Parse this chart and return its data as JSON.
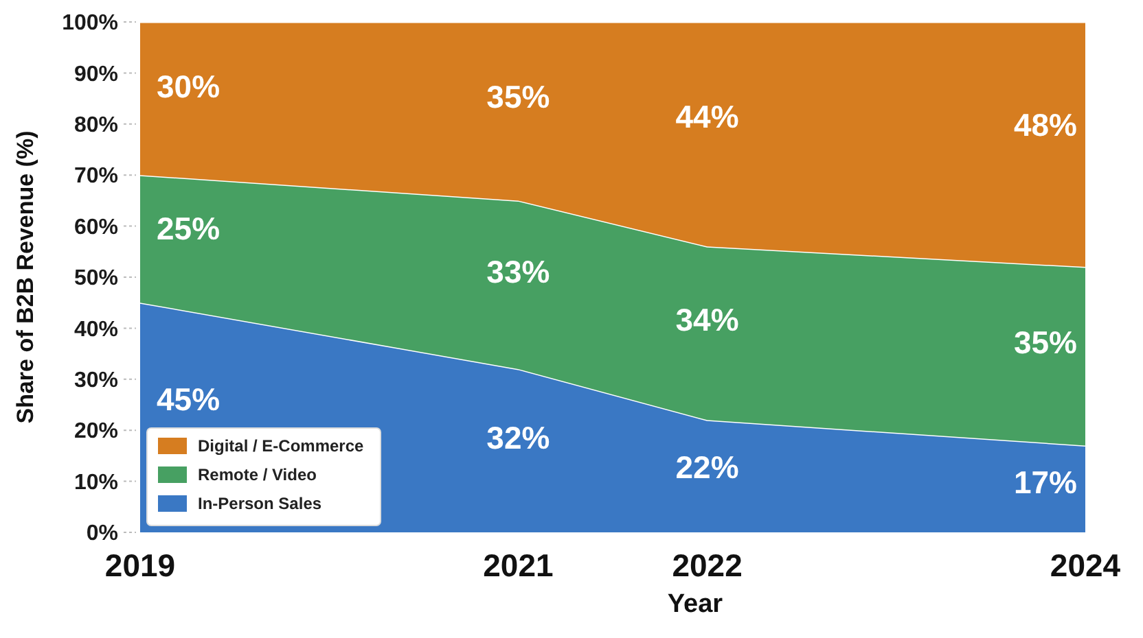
{
  "chart_data": {
    "type": "area",
    "stacked": true,
    "xlabel": "Year",
    "ylabel": "Share of B2B Revenue (%)",
    "x": [
      2019,
      2021,
      2022,
      2024
    ],
    "xlim": [
      2019,
      2024
    ],
    "xticks": [
      2019,
      2021,
      2022,
      2024
    ],
    "ylim": [
      0,
      100
    ],
    "yticks": [
      {
        "value": 0,
        "label": "0%"
      },
      {
        "value": 10,
        "label": "10%"
      },
      {
        "value": 20,
        "label": "20%"
      },
      {
        "value": 30,
        "label": "30%"
      },
      {
        "value": 40,
        "label": "40%"
      },
      {
        "value": 50,
        "label": "50%"
      },
      {
        "value": 60,
        "label": "60%"
      },
      {
        "value": 70,
        "label": "70%"
      },
      {
        "value": 80,
        "label": "80%"
      },
      {
        "value": 90,
        "label": "90%"
      },
      {
        "value": 100,
        "label": "100%"
      }
    ],
    "series": [
      {
        "name": "In-Person Sales",
        "color": "#3a78c4",
        "values": [
          45,
          32,
          22,
          17
        ],
        "value_labels": [
          "45%",
          "32%",
          "22%",
          "17%"
        ]
      },
      {
        "name": "Remote / Video",
        "color": "#47a062",
        "values": [
          25,
          33,
          34,
          35
        ],
        "value_labels": [
          "25%",
          "33%",
          "34%",
          "35%"
        ]
      },
      {
        "name": "Digital / E-Commerce",
        "color": "#d67d20",
        "values": [
          30,
          35,
          44,
          48
        ],
        "value_labels": [
          "30%",
          "35%",
          "44%",
          "48%"
        ]
      }
    ],
    "legend": "bottom left",
    "grid": false
  }
}
